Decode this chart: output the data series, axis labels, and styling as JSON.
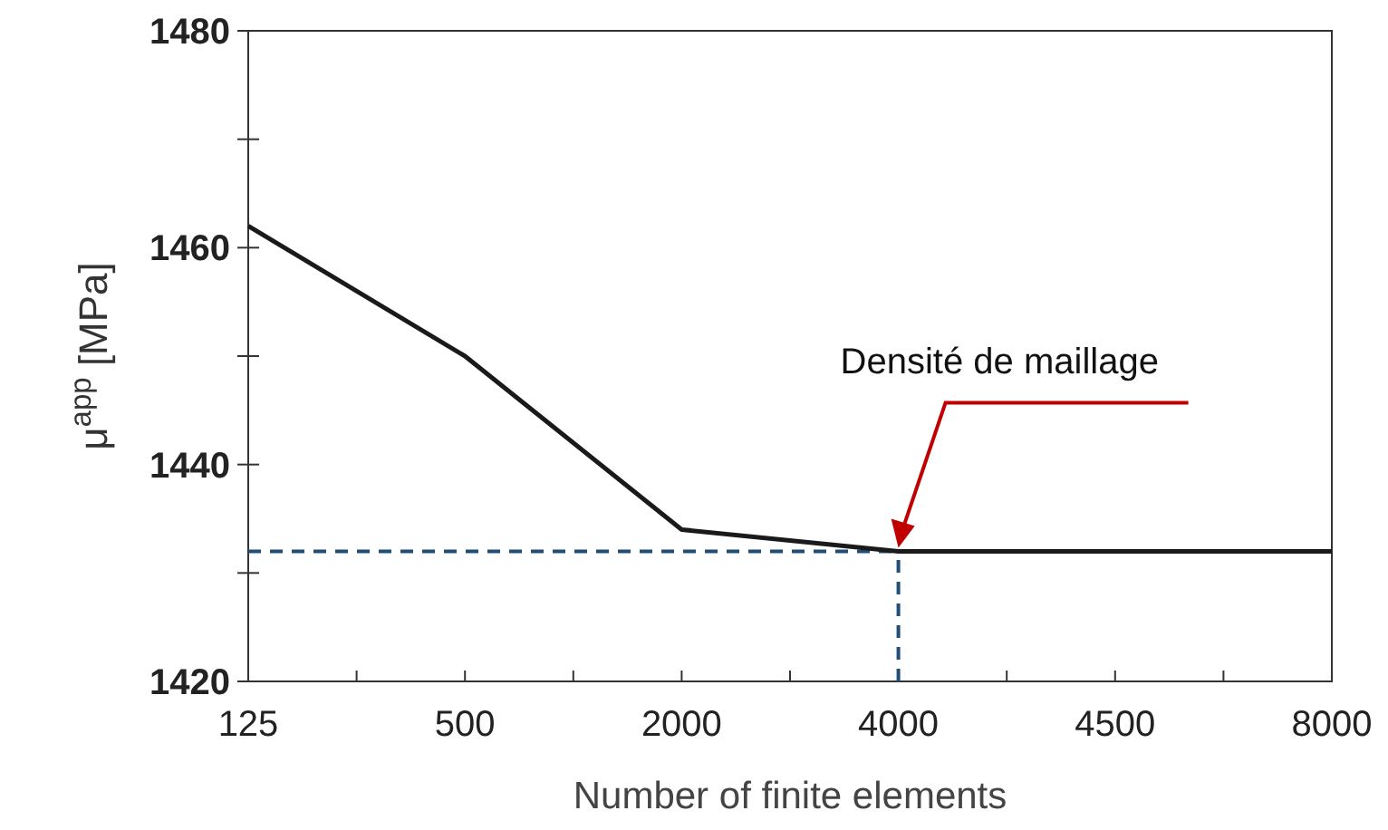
{
  "chart_data": {
    "type": "line",
    "xlabel": "Number of finite elements",
    "ylabel": "μ$^{app}$ [MPa]",
    "categories": [
      "125",
      "500",
      "2000",
      "4000",
      "4500",
      "8000"
    ],
    "series": [
      {
        "color": "#1a1a1a",
        "values": [
          1462,
          1450,
          1434,
          1432,
          1432,
          1432
        ]
      }
    ],
    "ylim": [
      1420,
      1480
    ],
    "yticks": [
      1420,
      {
        "value": 1430,
        "label": null
      },
      1440,
      {
        "value": 1450,
        "label": null
      },
      1460,
      {
        "value": 1470,
        "label": null
      },
      1480
    ],
    "grid": false,
    "marker": "none",
    "line_style": "solid",
    "ref_lines": [
      {
        "axis": "y",
        "value": 1432,
        "color": "#1f4e79",
        "line_style": "dashed"
      },
      {
        "axis": "x",
        "value": "4000",
        "color": "#1f4e79",
        "line_style": "dashed"
      }
    ],
    "annotations": [
      "Densité de maillage"
    ]
  }
}
